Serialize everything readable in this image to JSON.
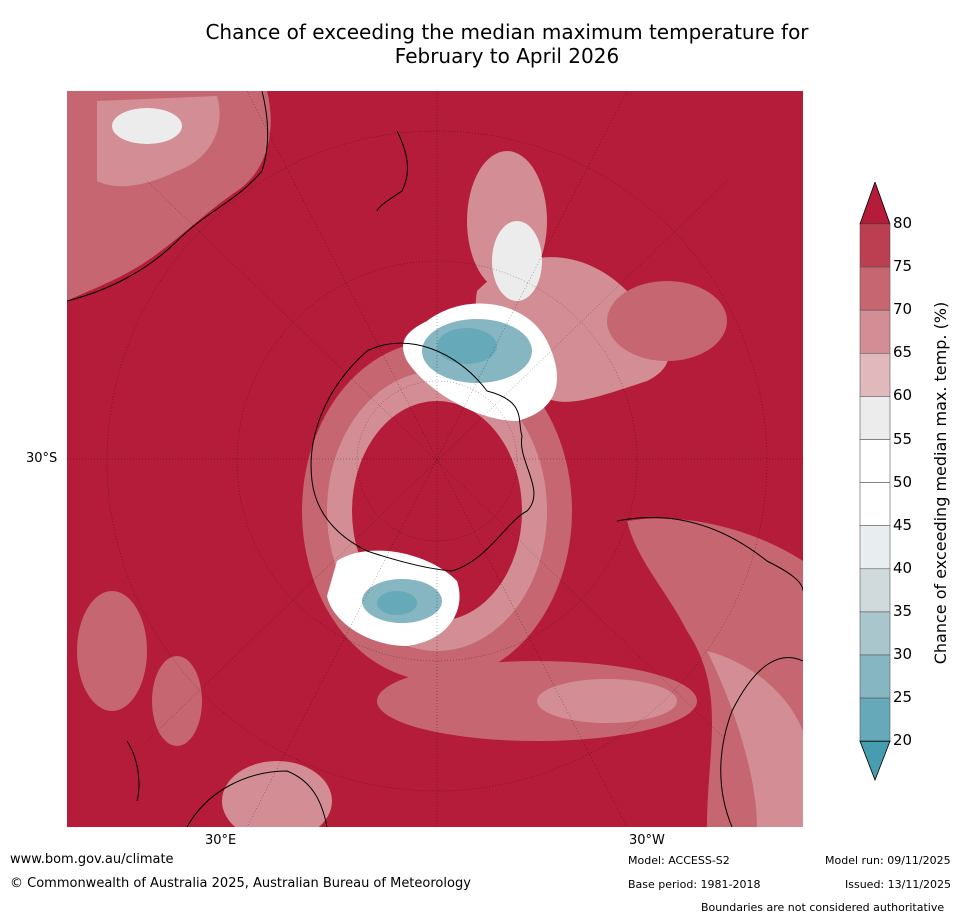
{
  "title_line1": "Chance of exceeding the median maximum temperature for",
  "title_line2": "February to April 2026",
  "lat_labels": {
    "lat30s": "30°S"
  },
  "lon_labels": {
    "lon30e": "30°E",
    "lon30w": "30°W"
  },
  "colorbar": {
    "label": "Chance of exceeding median max. temp. (%)",
    "ticks": [
      "80",
      "75",
      "70",
      "65",
      "60",
      "55",
      "50",
      "45",
      "40",
      "35",
      "30",
      "25",
      "20"
    ],
    "colors": [
      "#b41c39",
      "#bb3e51",
      "#c56670",
      "#d38e95",
      "#e1b9bc",
      "#ececec",
      "#ffffff",
      "#ffffff",
      "#e8eef0",
      "#d0dadd",
      "#a9c6cc",
      "#86b6c2",
      "#66a9b8",
      "#469daf"
    ]
  },
  "footer": {
    "website": "www.bom.gov.au/climate",
    "copyright": "© Commonwealth of Australia 2025, Australian Bureau of Meteorology",
    "model": "Model: ACCESS-S2",
    "base_period": "Base period: 1981-2018",
    "model_run": "Model run: 09/11/2025",
    "issued": "Issued: 13/11/2025",
    "disclaimer": "Boundaries are not considered authoritative"
  }
}
